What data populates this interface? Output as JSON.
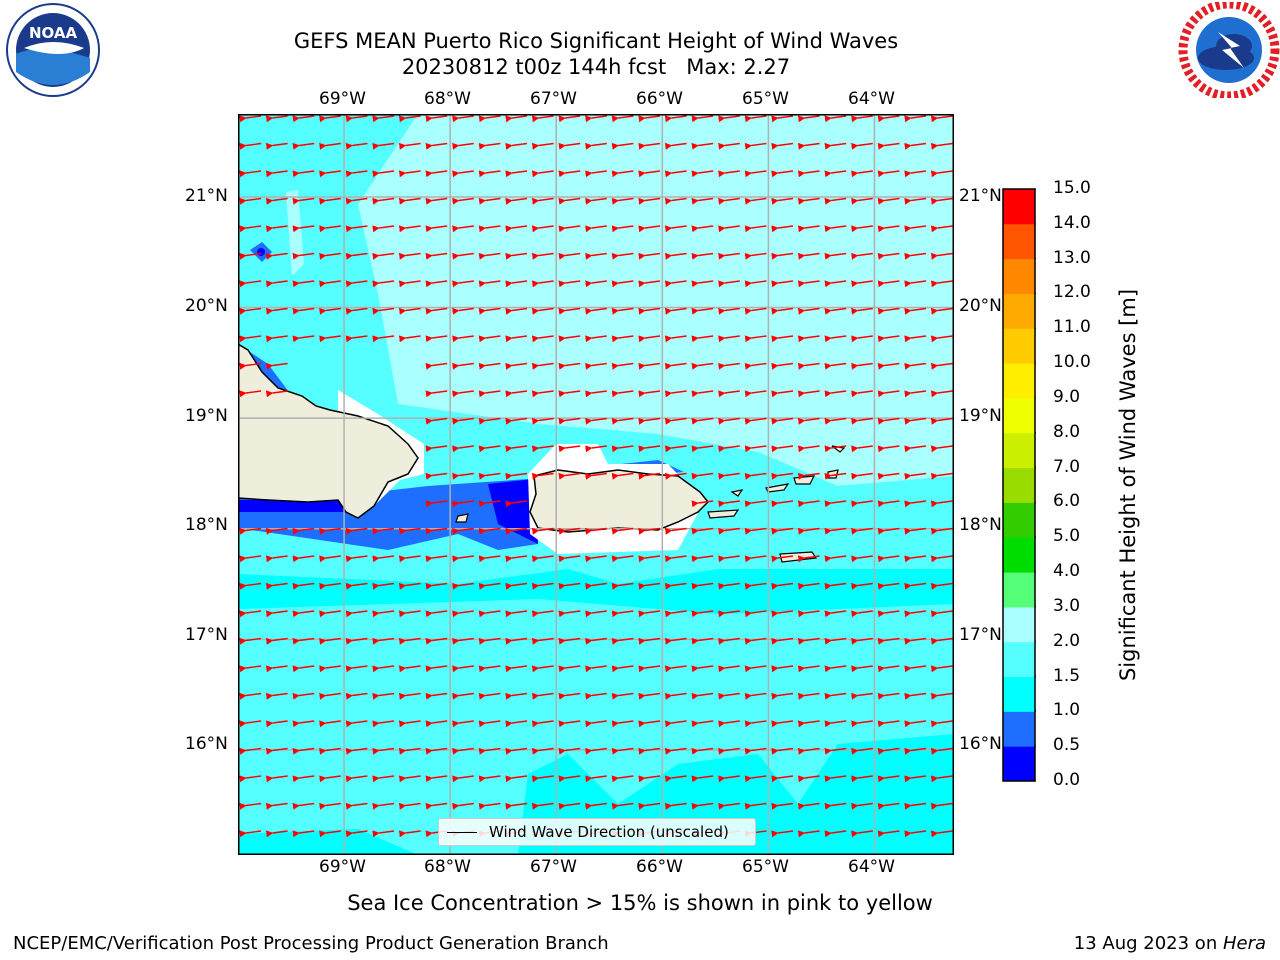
{
  "title": {
    "line1": "GEFS MEAN Puerto Rico Significant Height of Wind Waves",
    "line2": "20230812 t00z 144h fcst   Max: 2.27"
  },
  "logos": {
    "left": "noaa-logo",
    "right": "national-weather-service-logo",
    "left_text": "NOAA",
    "right_text": "NATIONAL WEATHER SERVICE"
  },
  "map": {
    "lon_labels": [
      "69°W",
      "68°W",
      "67°W",
      "66°W",
      "65°W",
      "64°W"
    ],
    "lat_labels": [
      "21°N",
      "20°N",
      "19°N",
      "18°N",
      "17°N",
      "16°N"
    ],
    "lon_range": [
      -70,
      -63.25
    ],
    "lat_range": [
      15.05,
      21.75
    ],
    "grid": true,
    "arrow_color": "#ff0000",
    "arrow_direction": "west-southwest",
    "legend": "Wind Wave Direction (unscaled)"
  },
  "colorbar": {
    "title": "Significant Height of Wind Waves [m]",
    "ticks": [
      "0.0",
      "0.5",
      "1.0",
      "1.5",
      "2.0",
      "3.0",
      "4.0",
      "5.0",
      "6.0",
      "7.0",
      "8.0",
      "9.0",
      "10.0",
      "11.0",
      "12.0",
      "13.0",
      "14.0",
      "15.0"
    ],
    "colors": [
      "#0000ff",
      "#1e6eff",
      "#00ffff",
      "#55ffff",
      "#aaffff",
      "#55ff77",
      "#00dd00",
      "#33cc00",
      "#99dd00",
      "#ccee00",
      "#eeff00",
      "#ffee00",
      "#ffcc00",
      "#ffaa00",
      "#ff8800",
      "#ff5500",
      "#ff0000"
    ]
  },
  "note": "Sea Ice Concentration > 15% is shown in pink to yellow",
  "footer": {
    "left": "NCEP/EMC/Verification Post Processing Product Generation Branch",
    "right_date": "13 Aug 2023 on ",
    "right_host": "Hera"
  }
}
